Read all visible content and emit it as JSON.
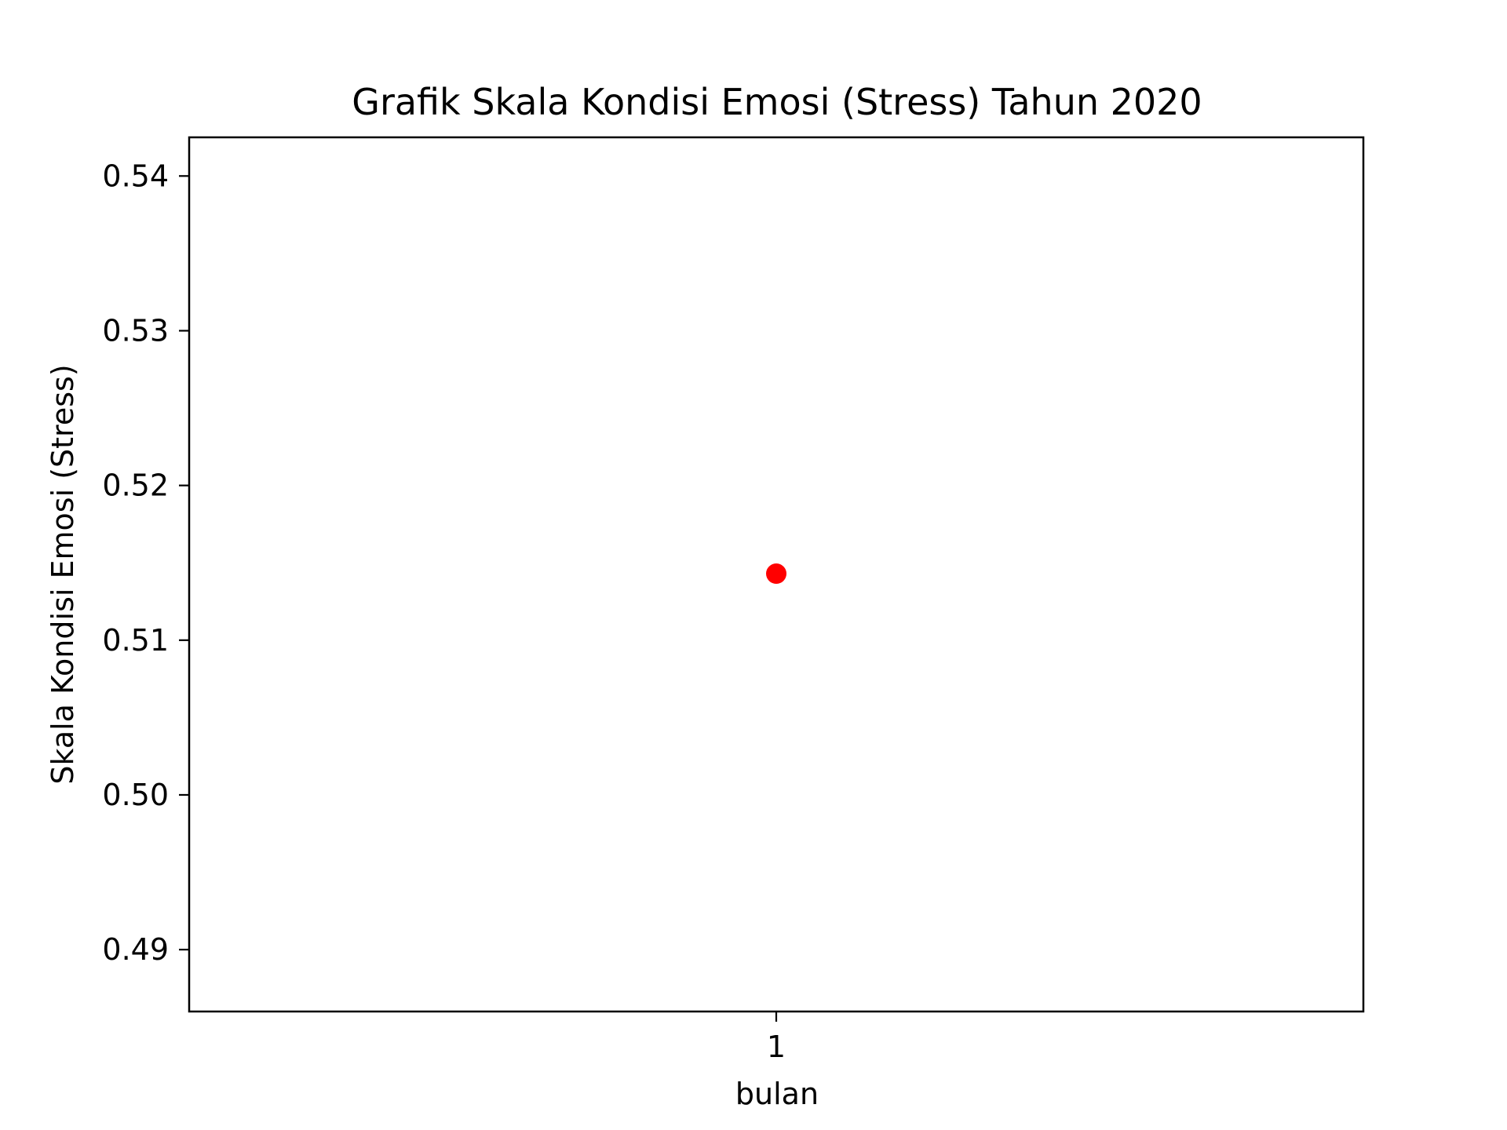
{
  "chart_data": {
    "type": "scatter",
    "title": "Grafik Skala Kondisi Emosi (Stress) Tahun 2020",
    "xlabel": "bulan",
    "ylabel": "Skala Kondisi Emosi (Stress)",
    "x_ticks": [
      "1"
    ],
    "y_ticks": [
      "0.49",
      "0.50",
      "0.51",
      "0.52",
      "0.53",
      "0.54"
    ],
    "xlim": [
      0.95,
      1.05
    ],
    "ylim": [
      0.486,
      0.5425
    ],
    "grid": false,
    "series": [
      {
        "color": "#ff0000",
        "points": [
          {
            "x": 1,
            "y": 0.5143
          }
        ]
      }
    ]
  }
}
